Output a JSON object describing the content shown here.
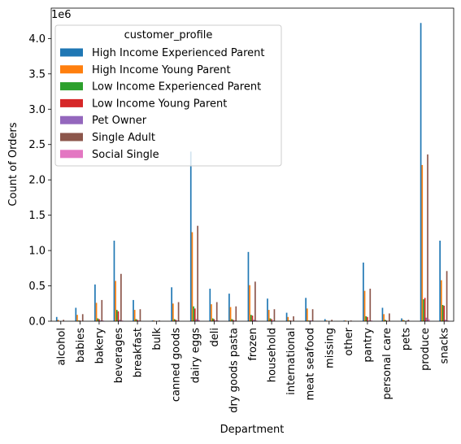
{
  "chart_data": {
    "type": "bar",
    "title": "",
    "xlabel": "Department",
    "ylabel": "Count of Orders",
    "y_offset_label": "1e6",
    "y_scale": 1000000,
    "ylim": [
      0,
      4.43
    ],
    "yticks": [
      0.0,
      0.5,
      1.0,
      1.5,
      2.0,
      2.5,
      3.0,
      3.5,
      4.0
    ],
    "ytick_labels": [
      "0.0",
      "0.5",
      "1.0",
      "1.5",
      "2.0",
      "2.5",
      "3.0",
      "3.5",
      "4.0"
    ],
    "grid": false,
    "legend_title": "customer_profile",
    "legend_position": "top-left",
    "categories": [
      "alcohol",
      "babies",
      "bakery",
      "beverages",
      "breakfast",
      "bulk",
      "canned goods",
      "dairy eggs",
      "deli",
      "dry goods pasta",
      "frozen",
      "household",
      "international",
      "meat seafood",
      "missing",
      "other",
      "pantry",
      "personal care",
      "pets",
      "produce",
      "snacks"
    ],
    "series": [
      {
        "name": "High Income Experienced Parent",
        "color": "#1f77b4",
        "values": [
          0.06,
          0.19,
          0.52,
          1.14,
          0.3,
          0.01,
          0.48,
          2.4,
          0.46,
          0.39,
          0.98,
          0.32,
          0.12,
          0.33,
          0.03,
          0.01,
          0.83,
          0.19,
          0.04,
          4.22,
          1.14
        ]
      },
      {
        "name": "High Income Young Parent",
        "color": "#ff7f0e",
        "values": [
          0.02,
          0.09,
          0.26,
          0.57,
          0.16,
          0.01,
          0.25,
          1.26,
          0.24,
          0.2,
          0.51,
          0.16,
          0.06,
          0.18,
          0.01,
          0.01,
          0.43,
          0.1,
          0.02,
          2.21,
          0.58
        ]
      },
      {
        "name": "Low Income Experienced Parent",
        "color": "#2ca02c",
        "values": [
          0.0,
          0.01,
          0.04,
          0.16,
          0.03,
          0.0,
          0.03,
          0.21,
          0.04,
          0.03,
          0.09,
          0.04,
          0.01,
          0.01,
          0.0,
          0.0,
          0.07,
          0.02,
          0.01,
          0.31,
          0.23
        ]
      },
      {
        "name": "Low Income Young Parent",
        "color": "#d62728",
        "values": [
          0.0,
          0.01,
          0.03,
          0.14,
          0.02,
          0.0,
          0.02,
          0.18,
          0.03,
          0.02,
          0.08,
          0.03,
          0.01,
          0.01,
          0.0,
          0.0,
          0.06,
          0.01,
          0.0,
          0.33,
          0.22
        ]
      },
      {
        "name": "Pet Owner",
        "color": "#9467bd",
        "values": [
          0.0,
          0.0,
          0.01,
          0.02,
          0.01,
          0.0,
          0.01,
          0.03,
          0.01,
          0.01,
          0.02,
          0.01,
          0.0,
          0.01,
          0.0,
          0.0,
          0.01,
          0.0,
          0.01,
          0.05,
          0.02
        ]
      },
      {
        "name": "Single Adult",
        "color": "#8c564b",
        "values": [
          0.02,
          0.1,
          0.3,
          0.67,
          0.17,
          0.01,
          0.27,
          1.35,
          0.27,
          0.21,
          0.56,
          0.17,
          0.07,
          0.17,
          0.02,
          0.01,
          0.46,
          0.11,
          0.02,
          2.36,
          0.71
        ]
      },
      {
        "name": "Social Single",
        "color": "#e377c2",
        "values": [
          0.0,
          0.0,
          0.01,
          0.01,
          0.0,
          0.0,
          0.0,
          0.02,
          0.01,
          0.0,
          0.01,
          0.0,
          0.0,
          0.0,
          0.0,
          0.0,
          0.01,
          0.0,
          0.0,
          0.03,
          0.01
        ]
      }
    ]
  }
}
